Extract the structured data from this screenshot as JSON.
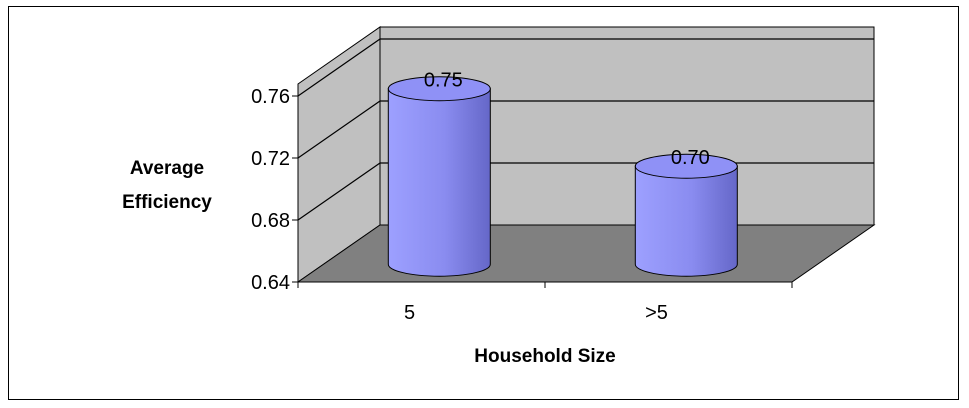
{
  "chart_data": {
    "type": "bar",
    "categories": [
      "5",
      ">5"
    ],
    "values": [
      0.75,
      0.7
    ],
    "data_labels": [
      "0.75",
      "0.70"
    ],
    "xlabel": "Household Size",
    "ylabel_lines": [
      "Average",
      "Efficiency"
    ],
    "ylim": [
      0.64,
      0.76
    ],
    "yticks": [
      "0.64",
      "0.68",
      "0.72",
      "0.76"
    ],
    "grid": true,
    "three_d": true,
    "bar_shape": "cylinder",
    "colors": {
      "bar": "#9999ff",
      "wall": "#c0c0c0",
      "floor": "#808080",
      "gridline": "#000000"
    }
  }
}
